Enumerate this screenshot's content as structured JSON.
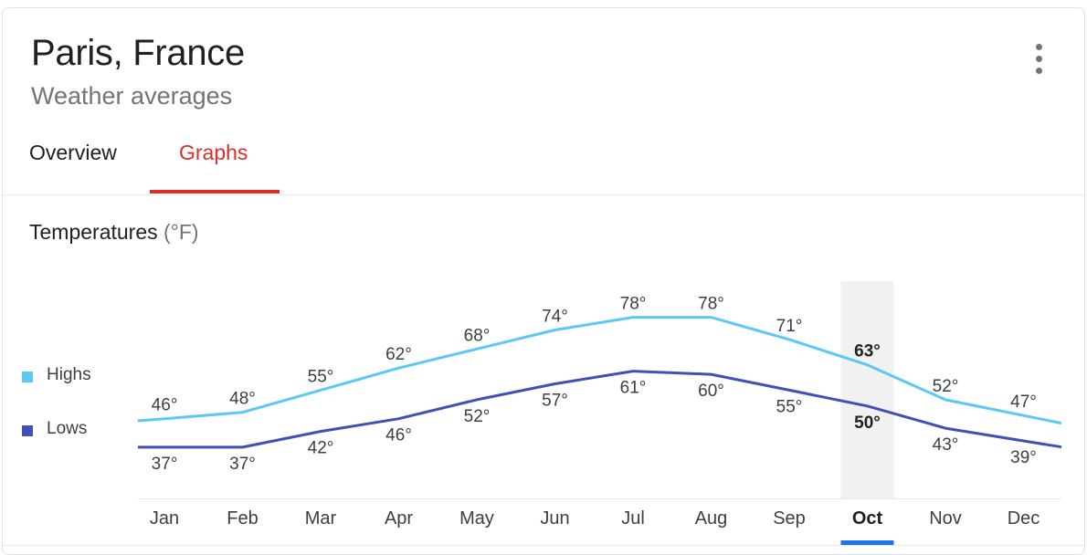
{
  "header": {
    "title": "Paris, France",
    "subtitle": "Weather averages",
    "menu_icon": "more-vert-icon"
  },
  "tabs": [
    {
      "label": "Overview",
      "selected": false
    },
    {
      "label": "Graphs",
      "selected": true
    }
  ],
  "section": {
    "title": "Temperatures",
    "unit": "(°F)"
  },
  "colors": {
    "highs": "#5bc8f5",
    "lows": "#3f51b5",
    "accent": "#d93025",
    "selected_indicator": "#1a73e8"
  },
  "chart_data": {
    "type": "line",
    "title": "Temperatures (°F)",
    "categories": [
      "Jan",
      "Feb",
      "Mar",
      "Apr",
      "May",
      "Jun",
      "Jul",
      "Aug",
      "Sep",
      "Oct",
      "Nov",
      "Dec"
    ],
    "series": [
      {
        "name": "Highs",
        "values": [
          46,
          48,
          55,
          62,
          68,
          74,
          78,
          78,
          71,
          63,
          52,
          47
        ]
      },
      {
        "name": "Lows",
        "values": [
          37,
          37,
          42,
          46,
          52,
          57,
          61,
          60,
          55,
          50,
          43,
          39
        ]
      }
    ],
    "selected_category": "Oct",
    "legend_position": "left",
    "grid": false
  }
}
